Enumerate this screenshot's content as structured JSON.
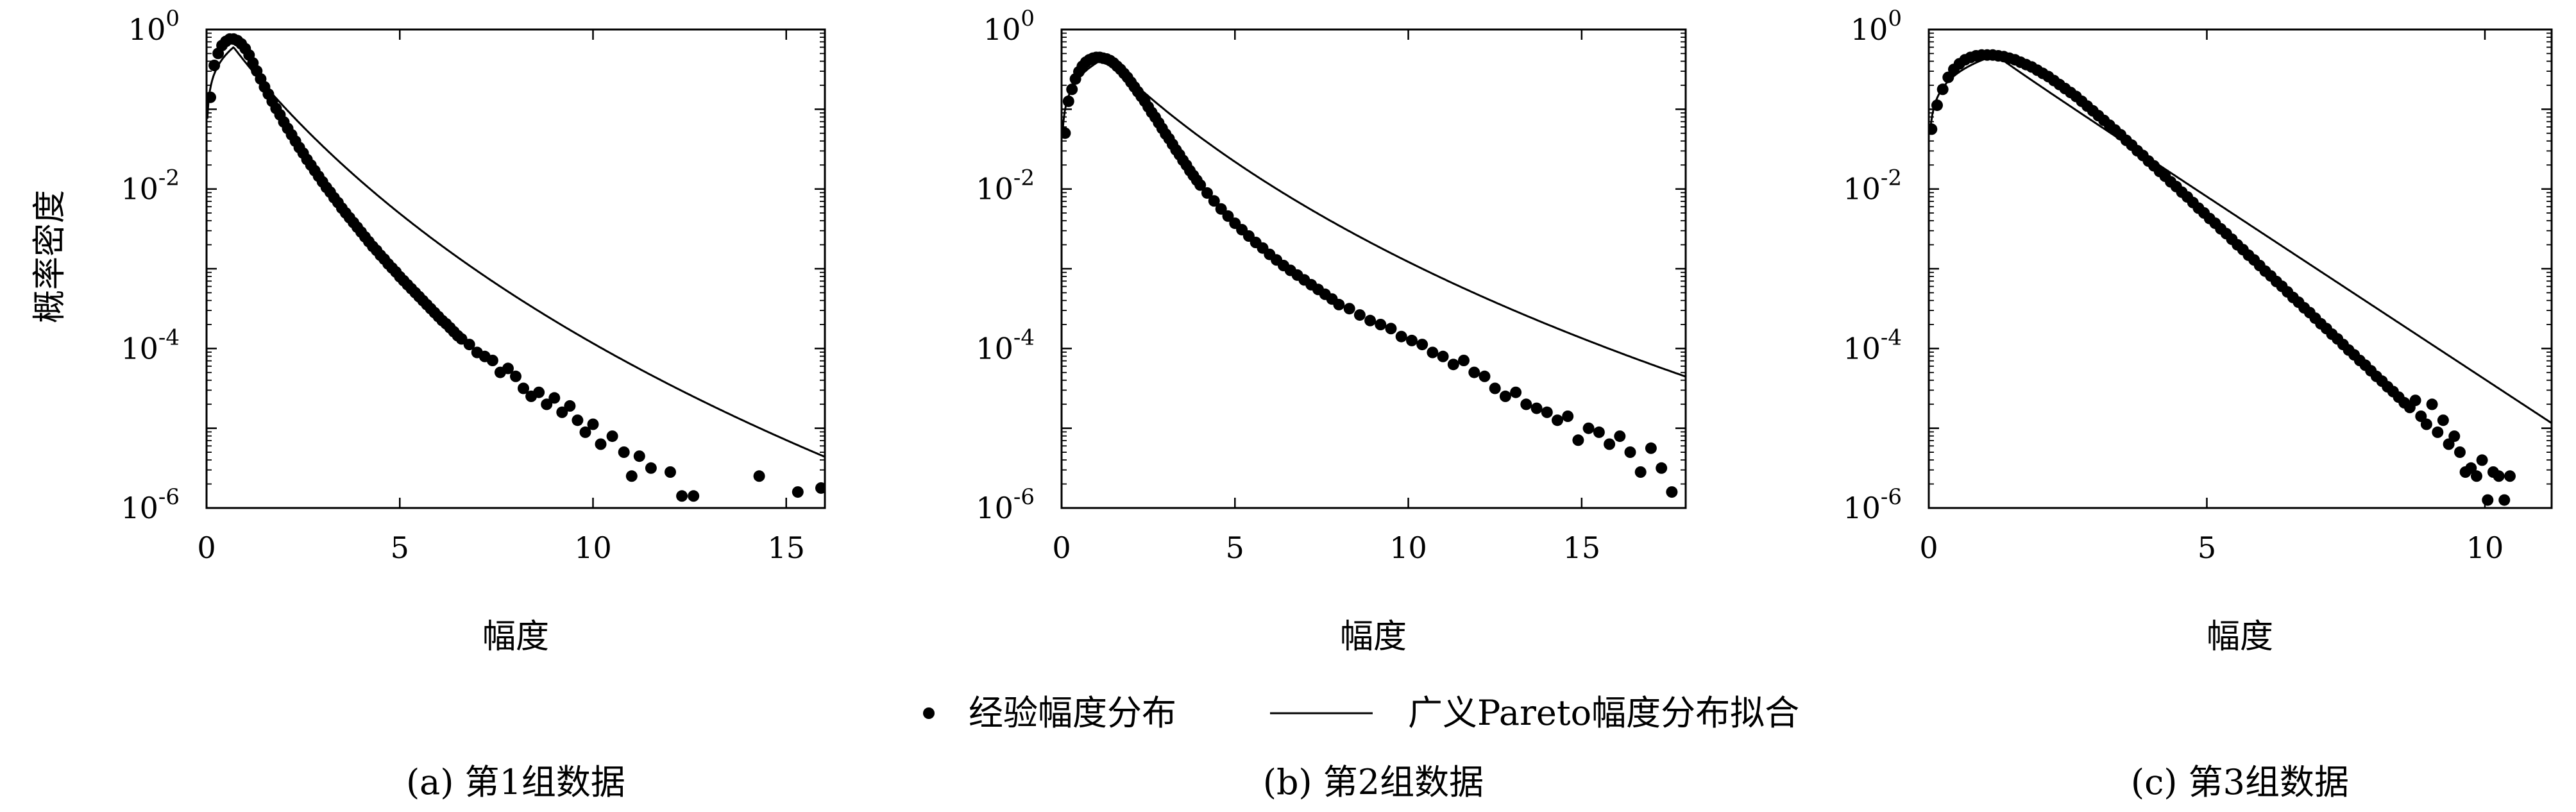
{
  "chart_data": [
    {
      "type": "scatter",
      "caption": "(a) 第1组数据",
      "xlabel": "幅度",
      "ylabel": "概率密度",
      "y_log_scale": true,
      "xlim": [
        0,
        16
      ],
      "ylim_exponents": [
        -6,
        0
      ],
      "xticks": [
        "0",
        "5",
        "10",
        "15"
      ],
      "yticks": [
        {
          "base": "10",
          "exp": "0"
        },
        {
          "base": "10",
          "exp": "-2"
        },
        {
          "base": "10",
          "exp": "-4"
        },
        {
          "base": "10",
          "exp": "-6"
        }
      ],
      "fit_model": {
        "peak_x": 0.7,
        "peak_density": 0.6,
        "k": 0.1,
        "sigma": 0.85
      },
      "series": [
        {
          "name": "经验幅度分布",
          "kind": "markers",
          "x": [
            0.1,
            0.2,
            0.3,
            0.4,
            0.5,
            0.6,
            0.7,
            0.8,
            0.9,
            1.0,
            1.1,
            1.2,
            1.3,
            1.4,
            1.5,
            1.6,
            1.7,
            1.8,
            1.9,
            2.0,
            2.1,
            2.2,
            2.3,
            2.4,
            2.5,
            2.6,
            2.7,
            2.8,
            2.9,
            3.0,
            3.1,
            3.2,
            3.3,
            3.4,
            3.5,
            3.6,
            3.7,
            3.8,
            3.9,
            4.0,
            4.1,
            4.2,
            4.3,
            4.4,
            4.5,
            4.6,
            4.7,
            4.8,
            4.9,
            5.0,
            5.1,
            5.2,
            5.3,
            5.4,
            5.5,
            5.6,
            5.7,
            5.8,
            5.9,
            6.0,
            6.1,
            6.2,
            6.3,
            6.4,
            6.5,
            6.6,
            6.8,
            7.0,
            7.2,
            7.4,
            7.6,
            7.8,
            8.0,
            8.2,
            8.4,
            8.6,
            8.8,
            9.0,
            9.2,
            9.4,
            9.6,
            9.8,
            10.0,
            10.2,
            10.5,
            10.8,
            11.0,
            11.2,
            11.5,
            12.0,
            12.3,
            12.6,
            14.3,
            15.3,
            15.9
          ],
          "log10_y": [
            -0.85,
            -0.45,
            -0.3,
            -0.2,
            -0.15,
            -0.12,
            -0.12,
            -0.14,
            -0.18,
            -0.24,
            -0.32,
            -0.42,
            -0.52,
            -0.62,
            -0.72,
            -0.81,
            -0.9,
            -0.99,
            -1.07,
            -1.16,
            -1.24,
            -1.32,
            -1.4,
            -1.48,
            -1.55,
            -1.63,
            -1.7,
            -1.77,
            -1.84,
            -1.91,
            -1.98,
            -2.04,
            -2.11,
            -2.17,
            -2.24,
            -2.3,
            -2.36,
            -2.42,
            -2.48,
            -2.54,
            -2.6,
            -2.66,
            -2.72,
            -2.77,
            -2.83,
            -2.88,
            -2.94,
            -2.99,
            -3.04,
            -3.1,
            -3.15,
            -3.2,
            -3.25,
            -3.3,
            -3.35,
            -3.4,
            -3.45,
            -3.5,
            -3.55,
            -3.6,
            -3.65,
            -3.69,
            -3.74,
            -3.79,
            -3.84,
            -3.88,
            -3.95,
            -4.05,
            -4.1,
            -4.15,
            -4.3,
            -4.25,
            -4.35,
            -4.5,
            -4.6,
            -4.55,
            -4.7,
            -4.62,
            -4.8,
            -4.72,
            -4.9,
            -5.05,
            -4.95,
            -5.2,
            -5.1,
            -5.3,
            -5.6,
            -5.35,
            -5.5,
            -5.55,
            -5.85,
            -5.85,
            -5.6,
            -5.8,
            -5.75
          ]
        },
        {
          "name": "广义Pareto幅度分布拟合",
          "kind": "line"
        }
      ]
    },
    {
      "type": "scatter",
      "caption": "(b) 第2组数据",
      "xlabel": "幅度",
      "y_log_scale": true,
      "xlim": [
        0,
        18
      ],
      "ylim_exponents": [
        -6,
        0
      ],
      "xticks": [
        "0",
        "5",
        "10",
        "15"
      ],
      "yticks": [
        {
          "base": "10",
          "exp": "0"
        },
        {
          "base": "10",
          "exp": "-2"
        },
        {
          "base": "10",
          "exp": "-4"
        },
        {
          "base": "10",
          "exp": "-6"
        }
      ],
      "fit_model": {
        "peak_x": 1.3,
        "peak_density": 0.45,
        "k": 0.12,
        "sigma": 1.3
      },
      "series": [
        {
          "name": "经验幅度分布",
          "kind": "markers",
          "x": [
            0.1,
            0.2,
            0.3,
            0.4,
            0.5,
            0.6,
            0.7,
            0.8,
            0.9,
            1.0,
            1.1,
            1.2,
            1.3,
            1.4,
            1.5,
            1.6,
            1.7,
            1.8,
            1.9,
            2.0,
            2.1,
            2.2,
            2.3,
            2.4,
            2.5,
            2.6,
            2.7,
            2.8,
            2.9,
            3.0,
            3.1,
            3.2,
            3.3,
            3.4,
            3.5,
            3.6,
            3.7,
            3.8,
            3.9,
            4.0,
            4.2,
            4.4,
            4.6,
            4.8,
            5.0,
            5.2,
            5.4,
            5.6,
            5.8,
            6.0,
            6.2,
            6.4,
            6.6,
            6.8,
            7.0,
            7.2,
            7.4,
            7.6,
            7.8,
            8.0,
            8.3,
            8.6,
            8.9,
            9.2,
            9.5,
            9.8,
            10.1,
            10.4,
            10.7,
            11.0,
            11.3,
            11.6,
            11.9,
            12.2,
            12.5,
            12.8,
            13.1,
            13.4,
            13.7,
            14.0,
            14.3,
            14.6,
            14.9,
            15.2,
            15.5,
            15.8,
            16.1,
            16.4,
            16.7,
            17.0,
            17.3,
            17.6
          ],
          "log10_y": [
            -1.3,
            -0.9,
            -0.75,
            -0.62,
            -0.53,
            -0.46,
            -0.41,
            -0.38,
            -0.36,
            -0.35,
            -0.35,
            -0.36,
            -0.37,
            -0.39,
            -0.42,
            -0.46,
            -0.5,
            -0.55,
            -0.6,
            -0.66,
            -0.72,
            -0.78,
            -0.84,
            -0.9,
            -0.97,
            -1.04,
            -1.1,
            -1.17,
            -1.24,
            -1.31,
            -1.37,
            -1.44,
            -1.51,
            -1.57,
            -1.64,
            -1.7,
            -1.77,
            -1.83,
            -1.89,
            -1.95,
            -2.05,
            -2.15,
            -2.25,
            -2.34,
            -2.43,
            -2.51,
            -2.59,
            -2.67,
            -2.74,
            -2.82,
            -2.89,
            -2.96,
            -3.02,
            -3.08,
            -3.14,
            -3.2,
            -3.26,
            -3.32,
            -3.38,
            -3.45,
            -3.5,
            -3.58,
            -3.65,
            -3.7,
            -3.75,
            -3.85,
            -3.9,
            -3.95,
            -4.05,
            -4.1,
            -4.2,
            -4.15,
            -4.3,
            -4.35,
            -4.5,
            -4.6,
            -4.55,
            -4.7,
            -4.75,
            -4.8,
            -4.9,
            -4.85,
            -5.15,
            -5.0,
            -5.05,
            -5.2,
            -5.1,
            -5.3,
            -5.55,
            -5.25,
            -5.5,
            -5.8
          ]
        },
        {
          "name": "广义Pareto幅度分布拟合",
          "kind": "line"
        }
      ]
    },
    {
      "type": "scatter",
      "caption": "(c) 第3组数据",
      "xlabel": "幅度",
      "y_log_scale": true,
      "xlim": [
        0,
        11.2
      ],
      "ylim_exponents": [
        -6,
        0
      ],
      "xticks": [
        "0",
        "5",
        "10"
      ],
      "yticks": [
        {
          "base": "10",
          "exp": "0"
        },
        {
          "base": "10",
          "exp": "-2"
        },
        {
          "base": "10",
          "exp": "-4"
        },
        {
          "base": "10",
          "exp": "-6"
        }
      ],
      "fit_model": {
        "peak_x": 1.2,
        "peak_density": 0.48,
        "k": 0.0,
        "sigma": 0.95
      },
      "series": [
        {
          "name": "经验幅度分布",
          "kind": "markers",
          "x": [
            0.05,
            0.15,
            0.25,
            0.35,
            0.45,
            0.55,
            0.65,
            0.75,
            0.85,
            0.95,
            1.05,
            1.15,
            1.25,
            1.35,
            1.45,
            1.55,
            1.65,
            1.75,
            1.85,
            1.95,
            2.05,
            2.15,
            2.25,
            2.35,
            2.45,
            2.55,
            2.65,
            2.75,
            2.85,
            2.95,
            3.05,
            3.15,
            3.25,
            3.35,
            3.45,
            3.55,
            3.65,
            3.75,
            3.85,
            3.95,
            4.05,
            4.15,
            4.25,
            4.35,
            4.45,
            4.55,
            4.65,
            4.75,
            4.85,
            4.95,
            5.05,
            5.15,
            5.25,
            5.35,
            5.45,
            5.55,
            5.65,
            5.75,
            5.85,
            5.95,
            6.05,
            6.15,
            6.25,
            6.35,
            6.45,
            6.55,
            6.65,
            6.75,
            6.85,
            6.95,
            7.05,
            7.15,
            7.25,
            7.35,
            7.45,
            7.55,
            7.65,
            7.75,
            7.85,
            7.95,
            8.05,
            8.15,
            8.25,
            8.35,
            8.45,
            8.55,
            8.65,
            8.75,
            8.85,
            8.95,
            9.05,
            9.15,
            9.25,
            9.35,
            9.45,
            9.55,
            9.65,
            9.75,
            9.85,
            9.95,
            10.05,
            10.15,
            10.25,
            10.35,
            10.45
          ],
          "log10_y": [
            -1.25,
            -0.95,
            -0.75,
            -0.6,
            -0.5,
            -0.43,
            -0.38,
            -0.35,
            -0.33,
            -0.32,
            -0.32,
            -0.32,
            -0.33,
            -0.34,
            -0.36,
            -0.38,
            -0.41,
            -0.44,
            -0.47,
            -0.51,
            -0.55,
            -0.59,
            -0.64,
            -0.69,
            -0.74,
            -0.79,
            -0.84,
            -0.9,
            -0.96,
            -1.02,
            -1.08,
            -1.14,
            -1.2,
            -1.26,
            -1.32,
            -1.39,
            -1.45,
            -1.52,
            -1.58,
            -1.65,
            -1.71,
            -1.78,
            -1.84,
            -1.91,
            -1.97,
            -2.04,
            -2.1,
            -2.17,
            -2.24,
            -2.3,
            -2.37,
            -2.43,
            -2.5,
            -2.56,
            -2.63,
            -2.7,
            -2.76,
            -2.83,
            -2.89,
            -2.96,
            -3.03,
            -3.09,
            -3.16,
            -3.22,
            -3.29,
            -3.36,
            -3.42,
            -3.49,
            -3.55,
            -3.62,
            -3.69,
            -3.75,
            -3.82,
            -3.88,
            -3.95,
            -4.02,
            -4.08,
            -4.15,
            -4.21,
            -4.28,
            -4.35,
            -4.41,
            -4.48,
            -4.54,
            -4.61,
            -4.68,
            -4.74,
            -4.65,
            -4.85,
            -4.95,
            -4.7,
            -5.05,
            -4.9,
            -5.2,
            -5.1,
            -5.3,
            -5.55,
            -5.5,
            -5.6,
            -5.4,
            -5.9,
            -5.55,
            -5.6,
            -5.9,
            -5.6
          ]
        },
        {
          "name": "广义Pareto幅度分布拟合",
          "kind": "line"
        }
      ]
    }
  ],
  "legend": {
    "marker_label": "经验幅度分布",
    "line_label": "广义Pareto幅度分布拟合",
    "placement": "bottom-center"
  }
}
